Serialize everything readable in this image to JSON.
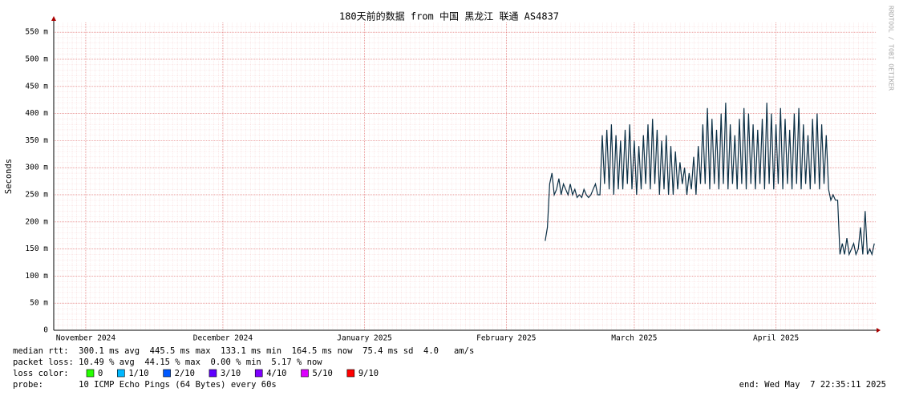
{
  "chart_data": {
    "type": "line",
    "title": "180天前的数据 from 中国 黑龙江 联通 AS4837",
    "ylabel": "Seconds",
    "watermark": "RRDTOOL / TOBI OETIKER",
    "grid": true,
    "xlim": [
      0,
      180
    ],
    "xticks": [
      {
        "value": 7,
        "label": "November 2024"
      },
      {
        "value": 37,
        "label": "December 2024"
      },
      {
        "value": 68,
        "label": "January 2025"
      },
      {
        "value": 99,
        "label": "February 2025"
      },
      {
        "value": 127,
        "label": "March 2025"
      },
      {
        "value": 158,
        "label": "April 2025"
      }
    ],
    "ylim": [
      0,
      0.568
    ],
    "yticks": [
      {
        "value": 0,
        "label": "0"
      },
      {
        "value": 0.05,
        "label": "50 m"
      },
      {
        "value": 0.1,
        "label": "100 m"
      },
      {
        "value": 0.15,
        "label": "150 m"
      },
      {
        "value": 0.2,
        "label": "200 m"
      },
      {
        "value": 0.25,
        "label": "250 m"
      },
      {
        "value": 0.3,
        "label": "300 m"
      },
      {
        "value": 0.35,
        "label": "350 m"
      },
      {
        "value": 0.4,
        "label": "400 m"
      },
      {
        "value": 0.45,
        "label": "450 m"
      },
      {
        "value": 0.5,
        "label": "500 m"
      },
      {
        "value": 0.55,
        "label": "550 m"
      }
    ],
    "x": [
      107.5,
      108,
      108.5,
      109,
      109.5,
      110,
      110.5,
      111,
      111.5,
      112,
      112.5,
      113,
      113.5,
      114,
      114.5,
      115,
      115.5,
      116,
      116.5,
      117,
      117.5,
      118,
      118.5,
      119,
      119.5,
      120,
      120.5,
      121,
      121.5,
      122,
      122.5,
      123,
      123.5,
      124,
      124.5,
      125,
      125.5,
      126,
      126.5,
      127,
      127.5,
      128,
      128.5,
      129,
      129.5,
      130,
      130.5,
      131,
      131.5,
      132,
      132.5,
      133,
      133.5,
      134,
      134.5,
      135,
      135.5,
      136,
      136.5,
      137,
      137.5,
      138,
      138.5,
      139,
      139.5,
      140,
      140.5,
      141,
      141.5,
      142,
      142.5,
      143,
      143.5,
      144,
      144.5,
      145,
      145.5,
      146,
      146.5,
      147,
      147.5,
      148,
      148.5,
      149,
      149.5,
      150,
      150.5,
      151,
      151.5,
      152,
      152.5,
      153,
      153.5,
      154,
      154.5,
      155,
      155.5,
      156,
      156.5,
      157,
      157.5,
      158,
      158.5,
      159,
      159.5,
      160,
      160.5,
      161,
      161.5,
      162,
      162.5,
      163,
      163.5,
      164,
      164.5,
      165,
      165.5,
      166,
      166.5,
      167,
      167.5,
      168,
      168.5,
      169,
      169.5,
      170,
      170.5,
      171,
      171.5,
      172,
      172.5,
      173,
      173.5,
      174,
      174.5,
      175,
      175.5,
      176,
      176.5,
      177,
      177.5,
      178,
      178.5,
      179,
      179.5
    ],
    "series": [
      {
        "name": "median rtt",
        "color": "#0b2f45",
        "values": [
          0.165,
          0.19,
          0.27,
          0.29,
          0.25,
          0.26,
          0.28,
          0.25,
          0.27,
          0.26,
          0.25,
          0.27,
          0.25,
          0.26,
          0.245,
          0.25,
          0.245,
          0.26,
          0.25,
          0.245,
          0.25,
          0.26,
          0.27,
          0.25,
          0.25,
          0.36,
          0.27,
          0.37,
          0.26,
          0.38,
          0.25,
          0.36,
          0.26,
          0.35,
          0.26,
          0.37,
          0.27,
          0.38,
          0.26,
          0.35,
          0.25,
          0.34,
          0.26,
          0.36,
          0.27,
          0.38,
          0.26,
          0.39,
          0.27,
          0.37,
          0.25,
          0.35,
          0.26,
          0.36,
          0.25,
          0.34,
          0.25,
          0.33,
          0.26,
          0.31,
          0.27,
          0.3,
          0.25,
          0.29,
          0.26,
          0.32,
          0.25,
          0.34,
          0.27,
          0.38,
          0.27,
          0.41,
          0.26,
          0.39,
          0.27,
          0.37,
          0.26,
          0.4,
          0.27,
          0.42,
          0.26,
          0.38,
          0.27,
          0.36,
          0.26,
          0.39,
          0.27,
          0.41,
          0.26,
          0.4,
          0.27,
          0.38,
          0.26,
          0.37,
          0.27,
          0.39,
          0.26,
          0.42,
          0.27,
          0.4,
          0.26,
          0.38,
          0.27,
          0.41,
          0.26,
          0.39,
          0.27,
          0.37,
          0.26,
          0.4,
          0.27,
          0.41,
          0.26,
          0.38,
          0.27,
          0.36,
          0.26,
          0.39,
          0.27,
          0.4,
          0.26,
          0.38,
          0.27,
          0.36,
          0.26,
          0.24,
          0.25,
          0.24,
          0.24,
          0.14,
          0.16,
          0.14,
          0.17,
          0.14,
          0.15,
          0.16,
          0.14,
          0.15,
          0.19,
          0.14,
          0.22,
          0.14,
          0.15,
          0.14,
          0.16
        ]
      }
    ]
  },
  "stats": {
    "median_rtt": "median rtt:  300.1 ms avg  445.5 ms max  133.1 ms min  164.5 ms now  75.4 ms sd  4.0   am/s",
    "packet_loss": "packet loss: 10.49 % avg  44.15 % max  0.00 % min  5.17 % now",
    "loss_color_label": "loss color:",
    "loss_colors": [
      {
        "label": "0",
        "color": "#26ff00"
      },
      {
        "label": "1/10",
        "color": "#00b8ff"
      },
      {
        "label": "2/10",
        "color": "#0059ff"
      },
      {
        "label": "3/10",
        "color": "#5e00ff"
      },
      {
        "label": "4/10",
        "color": "#7e00ff"
      },
      {
        "label": "5/10",
        "color": "#dd00ff"
      },
      {
        "label": "9/10",
        "color": "#ff0000"
      }
    ],
    "probe": "probe:       10 ICMP Echo Pings (64 Bytes) every 60s",
    "end": "end: Wed May  7 22:35:11 2025"
  }
}
